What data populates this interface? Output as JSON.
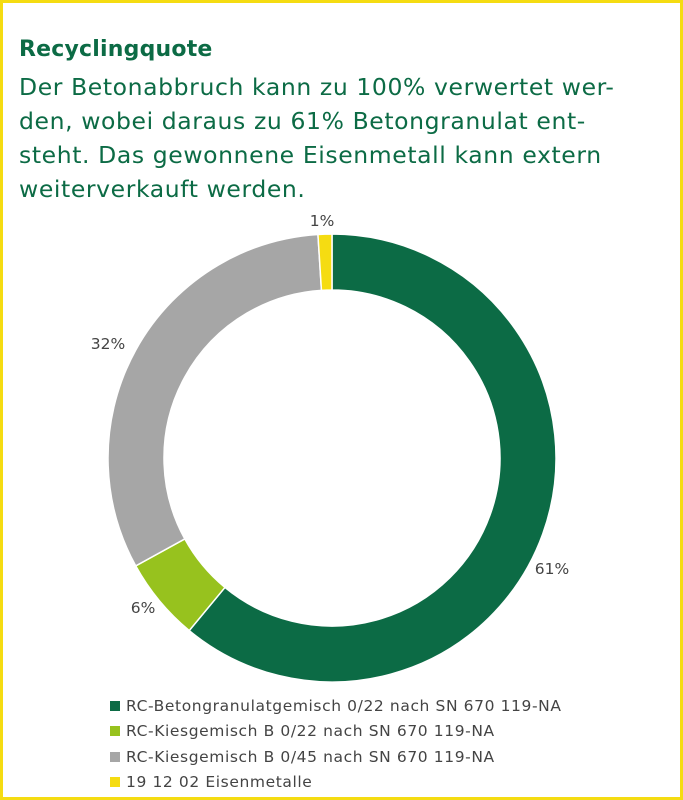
{
  "header": {
    "title": "Recyclingquote",
    "subtitle_lines": [
      "Der Betonabbruch kann zu 100% verwertet wer-",
      "den, wobei daraus zu 61% Betongranulat ent-",
      "steht. Das gewonnene Eisenmetall kann extern",
      "weiterverkauft werden."
    ]
  },
  "chart_data": {
    "type": "pie",
    "donut": true,
    "title": "Recyclingquote",
    "legend_position": "bottom",
    "categories": [
      "RC-Betongranulatgemisch 0/22 nach SN 670 119-NA",
      "RC-Kiesgemisch B 0/22 nach SN 670 119-NA",
      "RC-Kiesgemisch B 0/45 nach SN 670 119-NA",
      "19 12 02 Eisenmetalle"
    ],
    "values": [
      61,
      6,
      32,
      1
    ],
    "labels": [
      "61%",
      "6%",
      "32%",
      "1%"
    ],
    "colors": [
      "#0c6b45",
      "#97c21e",
      "#a6a6a6",
      "#f5dc12"
    ]
  },
  "colors": {
    "frame_border": "#f5dc12",
    "title_text": "#0c6b45",
    "label_text": "#444444"
  }
}
